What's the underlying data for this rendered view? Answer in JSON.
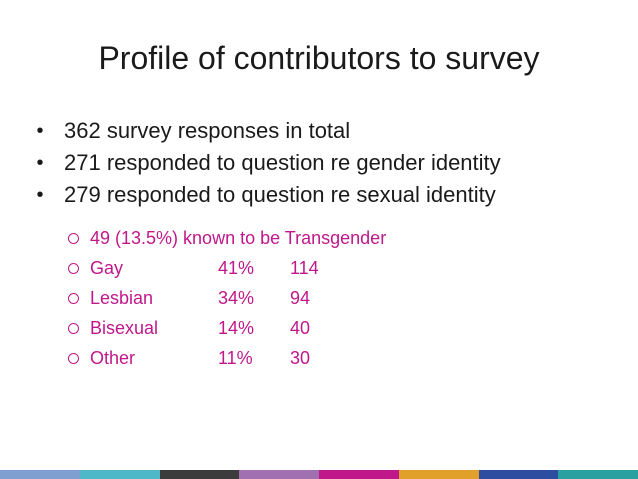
{
  "slide": {
    "title": "Profile of contributors to survey",
    "bullets": [
      "362 survey responses in total",
      "271 responded to question re gender identity",
      "279 responded to question re sexual identity"
    ],
    "bullet_glyph": "•",
    "sub_note": "49 (13.5%) known to be Transgender",
    "sub_rows": [
      {
        "label": "Gay",
        "percent": "41%",
        "count": "114"
      },
      {
        "label": "Lesbian",
        "percent": "34%",
        "count": "94"
      },
      {
        "label": "Bisexual",
        "percent": "14%",
        "count": "40"
      },
      {
        "label": "Other",
        "percent": "11%",
        "count": "30"
      }
    ],
    "colors": {
      "title_text": "#1a1a1a",
      "sub_text": "#c0188a",
      "footer_segments": [
        "#7f9fd0",
        "#4fb8c8",
        "#3c3c3c",
        "#a070b0",
        "#c0188a",
        "#e0a02a",
        "#2d4ea0",
        "#2aa0a0"
      ]
    }
  }
}
